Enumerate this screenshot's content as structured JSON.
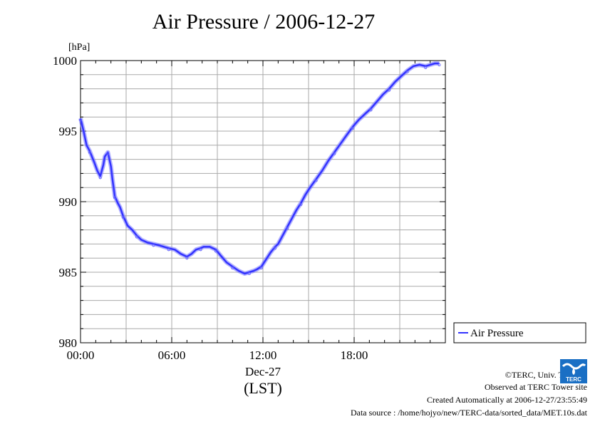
{
  "chart_data": {
    "type": "line",
    "title": "Air Pressure / 2006-12-27",
    "ylabel": "[hPa]",
    "xlabel": "(LST)",
    "date_label": "Dec-27",
    "ylim": [
      980,
      1000
    ],
    "xlim": [
      0,
      24
    ],
    "yticks": [
      {
        "value": 980,
        "label": "980"
      },
      {
        "value": 985,
        "label": "985"
      },
      {
        "value": 990,
        "label": "990"
      },
      {
        "value": 995,
        "label": "995"
      },
      {
        "value": 1000,
        "label": "1000"
      }
    ],
    "xticks": [
      {
        "value": 0,
        "label": "00:00"
      },
      {
        "value": 6,
        "label": "06:00"
      },
      {
        "value": 12,
        "label": "12:00"
      },
      {
        "value": 18,
        "label": "18:00"
      }
    ],
    "grid": true,
    "legend": {
      "position": "right",
      "entries": [
        "Air Pressure"
      ]
    },
    "series": [
      {
        "name": "Air Pressure",
        "color": "#3333ff",
        "x": [
          0.0,
          0.2,
          0.4,
          0.6,
          0.9,
          1.1,
          1.3,
          1.5,
          1.6,
          1.8,
          2.0,
          2.1,
          2.25,
          2.45,
          2.6,
          2.8,
          3.1,
          3.4,
          3.7,
          4.0,
          4.4,
          4.8,
          5.2,
          5.5,
          5.8,
          6.2,
          6.6,
          7.0,
          7.3,
          7.6,
          7.9,
          8.1,
          8.5,
          8.9,
          9.2,
          9.6,
          10.0,
          10.4,
          10.8,
          11.1,
          11.4,
          11.6,
          11.9,
          12.2,
          12.5,
          12.8,
          13.0,
          13.3,
          13.6,
          13.9,
          14.2,
          14.5,
          14.8,
          15.1,
          15.5,
          15.9,
          16.3,
          16.7,
          17.1,
          17.5,
          17.9,
          18.3,
          18.7,
          19.1,
          19.5,
          19.9,
          20.3,
          20.7,
          21.1,
          21.5,
          21.9,
          22.3,
          22.7,
          23.0,
          23.3,
          23.6
        ]
      }
    ]
  },
  "series_values": [
    995.9,
    995.0,
    994.0,
    993.6,
    992.8,
    992.2,
    991.8,
    992.6,
    993.2,
    993.5,
    992.5,
    991.6,
    990.4,
    989.9,
    989.6,
    989.0,
    988.3,
    988.0,
    987.6,
    987.3,
    987.1,
    987.0,
    986.9,
    986.8,
    986.7,
    986.6,
    986.3,
    986.1,
    986.3,
    986.6,
    986.7,
    986.8,
    986.8,
    986.6,
    986.2,
    985.7,
    985.4,
    985.1,
    984.9,
    985.0,
    985.1,
    985.2,
    985.4,
    985.9,
    986.4,
    986.8,
    987.0,
    987.6,
    988.2,
    988.8,
    989.4,
    989.9,
    990.5,
    991.0,
    991.6,
    992.2,
    992.9,
    993.5,
    994.1,
    994.7,
    995.3,
    995.8,
    996.2,
    996.6,
    997.1,
    997.6,
    998.0,
    998.5,
    998.9,
    999.3,
    999.6,
    999.7,
    999.6,
    999.7,
    999.8,
    999.8
  ],
  "footer": {
    "copyright": "©TERC, Univ. Tsukuba",
    "site": "Observed at TERC Tower site",
    "created": "Created Automatically at 2006-12-27/23:55:49",
    "source": "Data source : /home/hojyo/new/TERC-data/sorted_data/MET.10s.dat"
  },
  "logo": {
    "text": "TERC",
    "color": "#1a6fc4"
  }
}
